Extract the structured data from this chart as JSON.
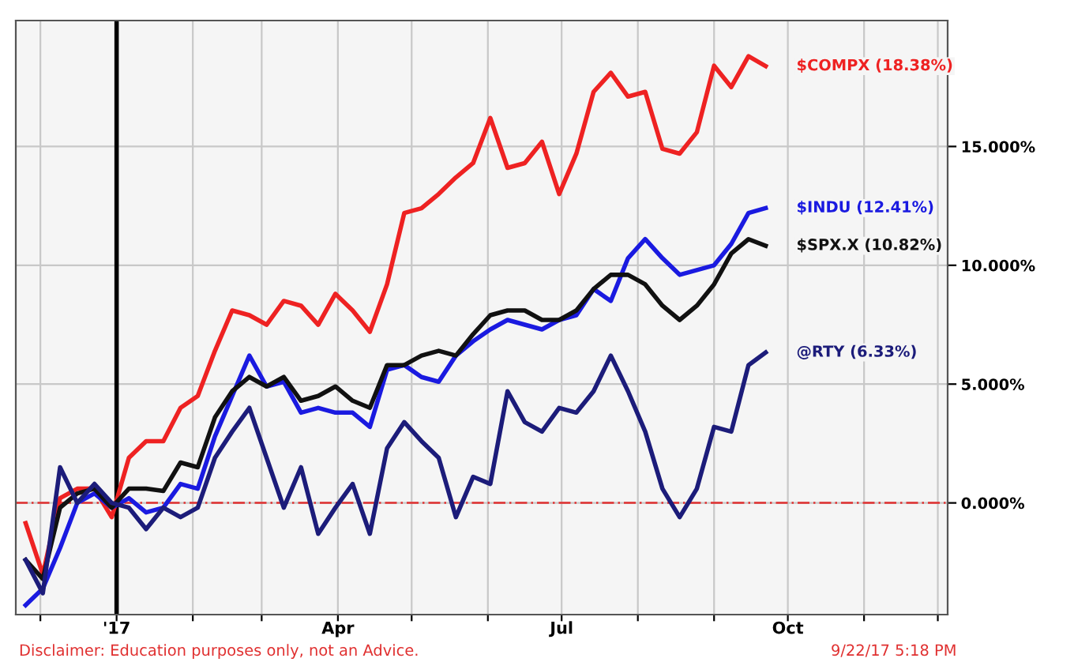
{
  "chart_data": {
    "type": "line",
    "x": [
      "2016-11-25",
      "2016-12-02",
      "2016-12-09",
      "2016-12-16",
      "2016-12-23",
      "2016-12-30",
      "2017-01-06",
      "2017-01-13",
      "2017-01-20",
      "2017-01-27",
      "2017-02-03",
      "2017-02-10",
      "2017-02-17",
      "2017-02-24",
      "2017-03-03",
      "2017-03-10",
      "2017-03-17",
      "2017-03-24",
      "2017-03-31",
      "2017-04-07",
      "2017-04-14",
      "2017-04-21",
      "2017-04-28",
      "2017-05-05",
      "2017-05-12",
      "2017-05-19",
      "2017-05-26",
      "2017-06-02",
      "2017-06-09",
      "2017-06-16",
      "2017-06-23",
      "2017-06-30",
      "2017-07-07",
      "2017-07-14",
      "2017-07-21",
      "2017-07-28",
      "2017-08-04",
      "2017-08-11",
      "2017-08-18",
      "2017-08-25",
      "2017-09-01",
      "2017-09-08",
      "2017-09-15",
      "2017-09-22"
    ],
    "series": [
      {
        "name": "$COMPX (18.38%)",
        "color": "#ee2222",
        "values": [
          -0.85,
          -3.0,
          0.2,
          0.6,
          0.6,
          -0.6,
          1.9,
          2.6,
          2.6,
          4.0,
          4.5,
          6.4,
          8.1,
          7.9,
          7.5,
          8.5,
          8.3,
          7.5,
          8.8,
          8.1,
          7.2,
          9.2,
          12.2,
          12.4,
          13.0,
          13.7,
          14.3,
          16.2,
          14.1,
          14.3,
          15.2,
          13.0,
          14.7,
          17.3,
          18.1,
          17.1,
          17.3,
          14.9,
          14.7,
          15.6,
          18.4,
          17.5,
          18.8,
          18.38
        ]
      },
      {
        "name": "$INDU (12.41%)",
        "color": "#1a1ae0",
        "values": [
          -4.3,
          -3.6,
          -1.9,
          0.0,
          0.4,
          -0.2,
          0.2,
          -0.4,
          -0.2,
          0.8,
          0.6,
          2.8,
          4.5,
          6.2,
          4.9,
          5.1,
          3.8,
          4.0,
          3.8,
          3.8,
          3.2,
          5.6,
          5.8,
          5.3,
          5.1,
          6.2,
          6.8,
          7.3,
          7.7,
          7.5,
          7.3,
          7.7,
          7.9,
          9.0,
          8.5,
          10.3,
          11.1,
          10.3,
          9.6,
          9.8,
          10.0,
          10.9,
          12.2,
          12.41
        ]
      },
      {
        "name": "$SPX.X (10.82%)",
        "color": "#111111",
        "values": [
          -2.4,
          -3.2,
          -0.2,
          0.4,
          0.6,
          -0.2,
          0.6,
          0.6,
          0.5,
          1.7,
          1.5,
          3.6,
          4.7,
          5.3,
          4.9,
          5.3,
          4.3,
          4.5,
          4.9,
          4.3,
          4.0,
          5.8,
          5.8,
          6.2,
          6.4,
          6.2,
          7.1,
          7.9,
          8.1,
          8.1,
          7.7,
          7.7,
          8.1,
          9.0,
          9.6,
          9.6,
          9.2,
          8.3,
          7.7,
          8.3,
          9.2,
          10.5,
          11.1,
          10.82
        ]
      },
      {
        "name": "@RTY (6.33%)",
        "color": "#1c1c7a",
        "values": [
          -2.4,
          -3.8,
          1.5,
          0.0,
          0.8,
          0.0,
          -0.2,
          -1.1,
          -0.2,
          -0.6,
          -0.2,
          1.9,
          3.0,
          4.0,
          1.9,
          -0.2,
          1.5,
          -1.3,
          -0.2,
          0.8,
          -1.3,
          2.3,
          3.4,
          2.6,
          1.9,
          -0.6,
          1.1,
          0.8,
          4.7,
          3.4,
          3.0,
          4.0,
          3.8,
          4.7,
          6.2,
          4.7,
          3.0,
          0.6,
          -0.6,
          0.6,
          3.2,
          3.0,
          5.8,
          6.33
        ]
      }
    ],
    "xlim": [
      "2016-11-21",
      "2017-12-05"
    ],
    "xticks": [
      {
        "value": "2016-12-01",
        "label": null
      },
      {
        "value": "2017-01-01",
        "label": "'17"
      },
      {
        "value": "2017-02-01",
        "label": null
      },
      {
        "value": "2017-03-01",
        "label": null
      },
      {
        "value": "2017-04-01",
        "label": "Apr"
      },
      {
        "value": "2017-05-01",
        "label": null
      },
      {
        "value": "2017-06-01",
        "label": null
      },
      {
        "value": "2017-07-01",
        "label": "Jul"
      },
      {
        "value": "2017-08-01",
        "label": null
      },
      {
        "value": "2017-09-01",
        "label": null
      },
      {
        "value": "2017-10-01",
        "label": "Oct"
      },
      {
        "value": "2017-11-01",
        "label": null
      },
      {
        "value": "2017-12-01",
        "label": null
      }
    ],
    "ylim": [
      -4.7,
      20.3
    ],
    "yticks": [
      {
        "value": 0,
        "label": "0.000%"
      },
      {
        "value": 5,
        "label": "5.000%"
      },
      {
        "value": 10,
        "label": "10.000%"
      },
      {
        "value": 15,
        "label": "15.000%"
      }
    ],
    "grid": true,
    "legend": false,
    "line_style": "solid",
    "marker": "none",
    "ref_lines": [
      {
        "axis": "x",
        "value": "2017-01-01",
        "label": null,
        "color": "#000000",
        "line_style": "solid"
      },
      {
        "axis": "y",
        "value": 0,
        "label": null,
        "color": "#e03030",
        "line_style": "dashed"
      }
    ],
    "annotations": [
      "Disclaimer: Education purposes only, not an Advice.",
      "9/22/17 5:18 PM"
    ]
  }
}
